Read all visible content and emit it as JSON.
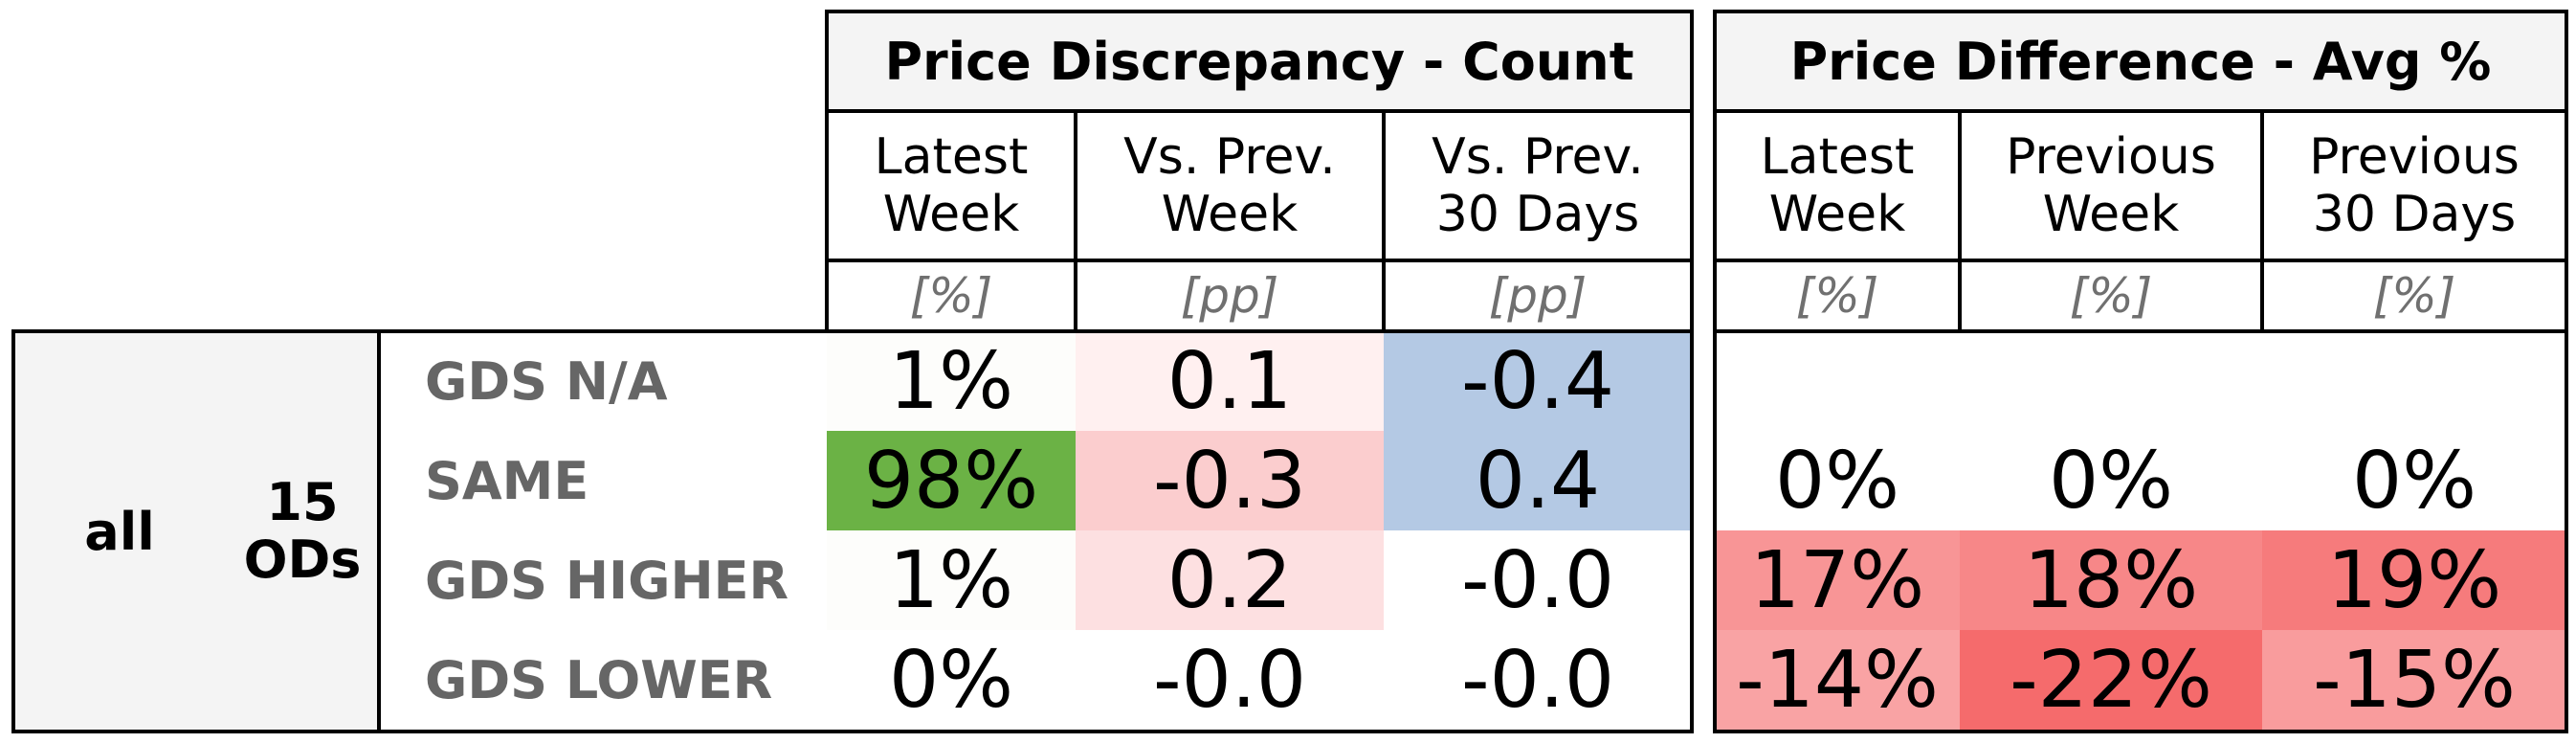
{
  "chart_data": {
    "type": "table",
    "groups": [
      {
        "title": "Price Discrepancy - Count",
        "columns": [
          {
            "header": "Latest\nWeek",
            "unit": "[%]"
          },
          {
            "header": "Vs. Prev.\nWeek",
            "unit": "[pp]"
          },
          {
            "header": "Vs. Prev.\n30 Days",
            "unit": "[pp]"
          }
        ]
      },
      {
        "title": "Price Difference - Avg %",
        "columns": [
          {
            "header": "Latest\nWeek",
            "unit": "[%]"
          },
          {
            "header": "Previous\nWeek",
            "unit": "[%]"
          },
          {
            "header": "Previous\n30 Days",
            "unit": "[%]"
          }
        ]
      }
    ],
    "row_group": {
      "label_1": "all",
      "label_2": "15\nODs"
    },
    "rows": [
      {
        "label": "GDS N/A",
        "count": [
          "1%",
          "0.1",
          "-0.4"
        ],
        "count_colors": [
          "#fdfdfb",
          "#fff0f0",
          "#b4c9e4"
        ],
        "avg": [
          "",
          "",
          ""
        ],
        "avg_colors": [
          "#ffffff",
          "#ffffff",
          "#ffffff"
        ]
      },
      {
        "label": "SAME",
        "count": [
          "98%",
          "-0.3",
          "0.4"
        ],
        "count_colors": [
          "#6bb245",
          "#fbcdce",
          "#b4c9e4"
        ],
        "avg": [
          "0%",
          "0%",
          "0%"
        ],
        "avg_colors": [
          "#ffffff",
          "#ffffff",
          "#ffffff"
        ]
      },
      {
        "label": "GDS HIGHER",
        "count": [
          "1%",
          "0.2",
          "-0.0"
        ],
        "count_colors": [
          "#fdfdfb",
          "#fde0e1",
          "#ffffff"
        ],
        "avg": [
          "17%",
          "18%",
          "19%"
        ],
        "avg_colors": [
          "#f89596",
          "#f78788",
          "#f67b7c"
        ]
      },
      {
        "label": "GDS LOWER",
        "count": [
          "0%",
          "-0.0",
          "-0.0"
        ],
        "count_colors": [
          "#ffffff",
          "#ffffff",
          "#ffffff"
        ],
        "avg": [
          "-14%",
          "-22%",
          "-15%"
        ],
        "avg_colors": [
          "#f9a3a4",
          "#f56b6c",
          "#f99c9d"
        ]
      }
    ]
  }
}
